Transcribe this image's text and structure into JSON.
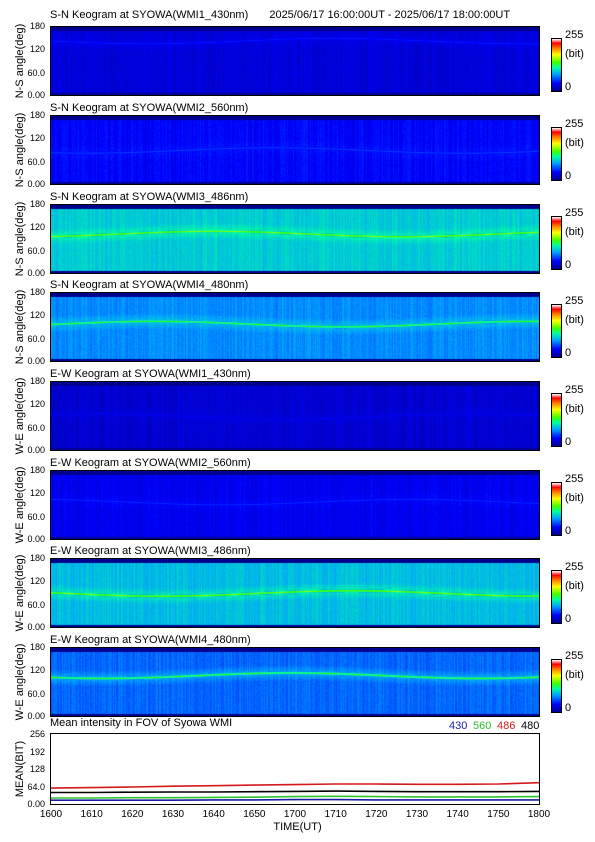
{
  "header": {
    "date_range": "2025/06/17 16:00:00UT - 2025/06/17 18:00:00UT"
  },
  "colorbar": {
    "max_label": "255",
    "unit_label": "(bit)",
    "min_label": "0"
  },
  "keogram_panels": [
    {
      "title": "S-N Keogram at SYOWA(WMI1_430nm)",
      "ylabel": "N-S angle(deg)",
      "level": 0.1,
      "aurora_level": 0.18,
      "bright_row": 0.2
    },
    {
      "title": "S-N Keogram at SYOWA(WMI2_560nm)",
      "ylabel": "N-S angle(deg)",
      "level": 0.15,
      "aurora_level": 0.22,
      "bright_row": 0.5
    },
    {
      "title": "S-N Keogram at SYOWA(WMI3_486nm)",
      "ylabel": "N-S angle(deg)",
      "level": 0.38,
      "aurora_level": 0.62,
      "bright_row": 0.42
    },
    {
      "title": "S-N Keogram at SYOWA(WMI4_480nm)",
      "ylabel": "N-S angle(deg)",
      "level": 0.3,
      "aurora_level": 0.55,
      "bright_row": 0.45
    },
    {
      "title": "E-W Keogram at SYOWA(WMI1_430nm)",
      "ylabel": "W-E angle(deg)",
      "level": 0.09,
      "aurora_level": 0.14,
      "bright_row": 0.5
    },
    {
      "title": "E-W Keogram at SYOWA(WMI2_560nm)",
      "ylabel": "W-E angle(deg)",
      "level": 0.13,
      "aurora_level": 0.2,
      "bright_row": 0.45
    },
    {
      "title": "E-W Keogram at SYOWA(WMI3_486nm)",
      "ylabel": "W-E angle(deg)",
      "level": 0.36,
      "aurora_level": 0.62,
      "bright_row": 0.5
    },
    {
      "title": "E-W Keogram at SYOWA(WMI4_480nm)",
      "ylabel": "W-E angle(deg)",
      "level": 0.26,
      "aurora_level": 0.55,
      "bright_row": 0.4
    }
  ],
  "keogram_yticks": [
    "180",
    "120",
    "60.0",
    "0.00"
  ],
  "chart_data": {
    "type": "line",
    "title": "Mean intensity in FOV of Syowa WMI",
    "xlabel": "TIME(UT)",
    "ylabel": "MEAN(BIT)",
    "x_ticks": [
      "1600",
      "1610",
      "1620",
      "1630",
      "1640",
      "1650",
      "1700",
      "1710",
      "1720",
      "1730",
      "1740",
      "1750",
      "1800"
    ],
    "y_ticks": [
      "256",
      "192",
      "128",
      "64.0",
      "0.00"
    ],
    "ylim": [
      0,
      256
    ],
    "x": [
      1600,
      1610,
      1620,
      1630,
      1640,
      1650,
      1700,
      1710,
      1720,
      1730,
      1740,
      1750,
      1800
    ],
    "series": [
      {
        "name": "430",
        "color": "#1a1aa6",
        "values": [
          14,
          14,
          14,
          14,
          15,
          15,
          16,
          16,
          15,
          15,
          15,
          15,
          15
        ]
      },
      {
        "name": "560",
        "color": "#2cc42c",
        "values": [
          22,
          22,
          23,
          23,
          24,
          25,
          27,
          28,
          27,
          26,
          26,
          26,
          27
        ]
      },
      {
        "name": "486",
        "color": "#d41a1a",
        "values": [
          58,
          60,
          62,
          65,
          67,
          69,
          71,
          73,
          73,
          72,
          72,
          73,
          78
        ]
      },
      {
        "name": "480",
        "color": "#000000",
        "values": [
          42,
          42,
          43,
          44,
          44,
          45,
          46,
          47,
          46,
          45,
          45,
          45,
          46
        ]
      }
    ]
  }
}
